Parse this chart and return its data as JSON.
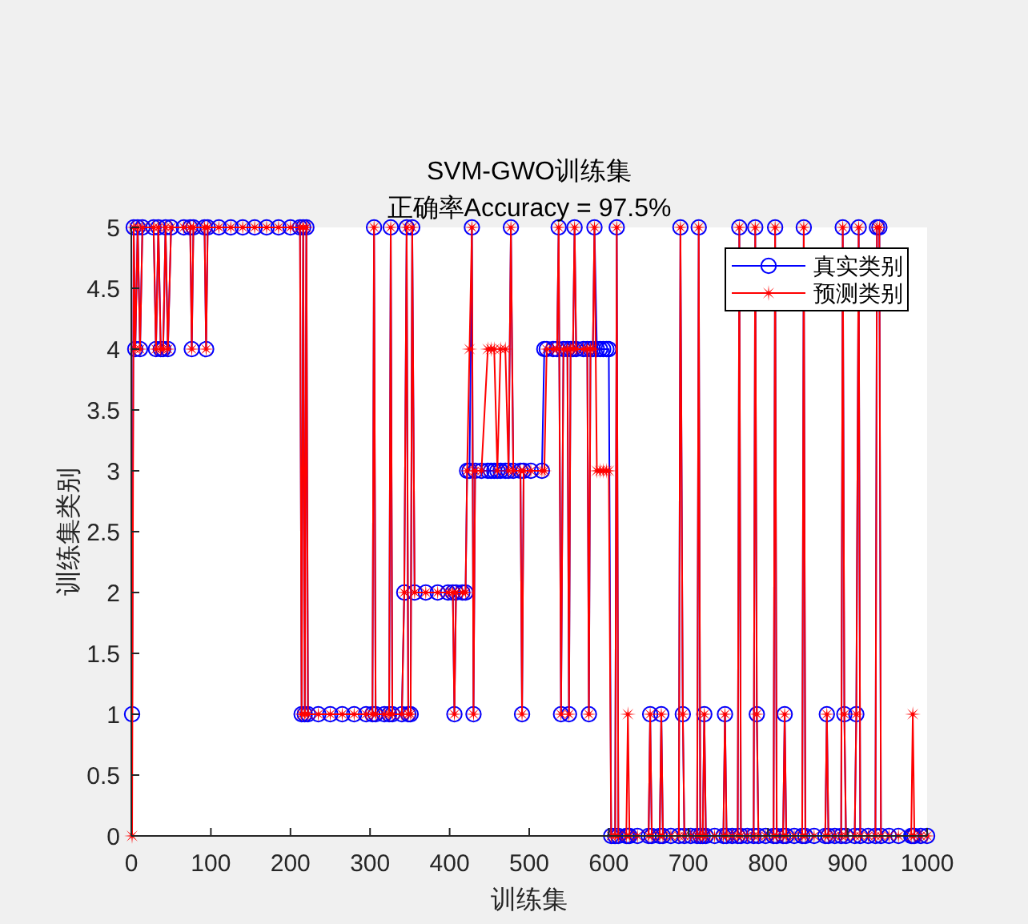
{
  "chart_data": {
    "type": "line",
    "title": "SVM-GWO训练集",
    "subtitle": "正确率Accuracy = 97.5%",
    "xlabel": "训练集",
    "ylabel": "训练集类别",
    "xlim": [
      0,
      1000
    ],
    "xticks": [
      0,
      100,
      200,
      300,
      400,
      500,
      600,
      700,
      800,
      900,
      1000
    ],
    "ylim": [
      0,
      5
    ],
    "yticks": [
      0,
      0.5,
      1,
      1.5,
      2,
      2.5,
      3,
      3.5,
      4,
      4.5,
      5
    ],
    "legend": "top right",
    "x": [
      1,
      3,
      5,
      8,
      11,
      14,
      28,
      31,
      34,
      37,
      40,
      43,
      46,
      50,
      66,
      74,
      76,
      78,
      92,
      94,
      96,
      110,
      125,
      140,
      155,
      170,
      185,
      200,
      212,
      214,
      216,
      218,
      220,
      222,
      235,
      250,
      265,
      280,
      295,
      303,
      305,
      307,
      318,
      324,
      326,
      328,
      340,
      343,
      346,
      348,
      351,
      353,
      356,
      370,
      385,
      398,
      404,
      406,
      408,
      416,
      420,
      422,
      425,
      428,
      430,
      432,
      440,
      448,
      452,
      456,
      460,
      464,
      470,
      474,
      477,
      480,
      489,
      491,
      493,
      502,
      516,
      519,
      522,
      530,
      535,
      537,
      540,
      543,
      548,
      550,
      552,
      555,
      557,
      559,
      568,
      573,
      575,
      577,
      580,
      582,
      585,
      589,
      593,
      597,
      600,
      603,
      608,
      610,
      612,
      622,
      624,
      626,
      636,
      650,
      652,
      654,
      664,
      666,
      668,
      678,
      688,
      690,
      693,
      695,
      703,
      711,
      713,
      715,
      718,
      720,
      722,
      733,
      744,
      746,
      748,
      755,
      762,
      764,
      766,
      774,
      782,
      784,
      786,
      788,
      797,
      807,
      809,
      811,
      819,
      821,
      823,
      833,
      843,
      845,
      847,
      858,
      872,
      874,
      876,
      884,
      892,
      894,
      896,
      898,
      909,
      911,
      914,
      916,
      926,
      935,
      937,
      940,
      942,
      952,
      964,
      980,
      982,
      984,
      992,
      1000
    ],
    "series": [
      {
        "name": "真实类别",
        "color": "#0000ff",
        "marker": "circle",
        "values": [
          1,
          5,
          4,
          5,
          4,
          5,
          5,
          4,
          5,
          4,
          4,
          5,
          4,
          5,
          5,
          5,
          4,
          5,
          5,
          4,
          5,
          5,
          5,
          5,
          5,
          5,
          5,
          5,
          5,
          1,
          5,
          1,
          5,
          1,
          1,
          1,
          1,
          1,
          1,
          1,
          5,
          1,
          1,
          1,
          5,
          1,
          1,
          2,
          5,
          1,
          1,
          5,
          2,
          2,
          2,
          2,
          2,
          1,
          2,
          2,
          2,
          3,
          3,
          5,
          1,
          3,
          3,
          3,
          3,
          3,
          3,
          3,
          3,
          3,
          5,
          3,
          3,
          1,
          3,
          3,
          3,
          4,
          4,
          4,
          4,
          5,
          1,
          4,
          4,
          1,
          4,
          4,
          5,
          4,
          4,
          4,
          1,
          4,
          4,
          5,
          4,
          4,
          4,
          4,
          4,
          0,
          0,
          5,
          0,
          0,
          0,
          0,
          0,
          0,
          1,
          0,
          0,
          1,
          0,
          0,
          0,
          5,
          1,
          0,
          0,
          0,
          5,
          0,
          0,
          1,
          0,
          0,
          0,
          1,
          0,
          0,
          0,
          5,
          0,
          0,
          0,
          5,
          1,
          0,
          0,
          0,
          5,
          0,
          0,
          1,
          0,
          0,
          0,
          5,
          0,
          0,
          0,
          1,
          0,
          0,
          0,
          5,
          1,
          0,
          0,
          1,
          5,
          0,
          0,
          0,
          5,
          5,
          0,
          0,
          0,
          0,
          0,
          0,
          0,
          0
        ]
      },
      {
        "name": "预测类别",
        "color": "#ff0000",
        "marker": "star",
        "values": [
          0,
          5,
          4,
          5,
          4,
          5,
          5,
          4,
          5,
          4,
          4,
          5,
          4,
          5,
          5,
          5,
          4,
          5,
          5,
          4,
          5,
          5,
          5,
          5,
          5,
          5,
          5,
          5,
          5,
          1,
          5,
          1,
          5,
          1,
          1,
          1,
          1,
          1,
          1,
          1,
          5,
          1,
          1,
          1,
          5,
          1,
          1,
          2,
          5,
          1,
          1,
          5,
          2,
          2,
          2,
          2,
          2,
          1,
          2,
          2,
          2,
          3,
          4,
          5,
          1,
          3,
          3,
          4,
          4,
          4,
          3,
          4,
          4,
          3,
          5,
          3,
          3,
          1,
          3,
          3,
          3,
          3,
          4,
          4,
          4,
          5,
          1,
          4,
          4,
          1,
          4,
          4,
          5,
          4,
          4,
          4,
          1,
          4,
          4,
          5,
          3,
          3,
          3,
          3,
          3,
          0,
          0,
          5,
          0,
          0,
          1,
          0,
          0,
          0,
          1,
          0,
          0,
          1,
          0,
          0,
          0,
          5,
          1,
          0,
          0,
          0,
          5,
          0,
          0,
          1,
          0,
          0,
          0,
          1,
          0,
          0,
          0,
          5,
          0,
          0,
          0,
          5,
          1,
          0,
          0,
          0,
          5,
          0,
          0,
          1,
          0,
          0,
          0,
          5,
          0,
          0,
          0,
          1,
          0,
          0,
          0,
          5,
          1,
          0,
          0,
          1,
          5,
          0,
          0,
          0,
          5,
          5,
          0,
          0,
          0,
          0,
          1,
          0,
          0,
          0
        ]
      }
    ]
  }
}
